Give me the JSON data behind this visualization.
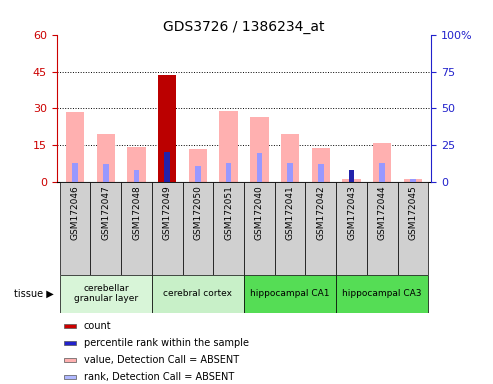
{
  "title": "GDS3726 / 1386234_at",
  "samples": [
    "GSM172046",
    "GSM172047",
    "GSM172048",
    "GSM172049",
    "GSM172050",
    "GSM172051",
    "GSM172040",
    "GSM172041",
    "GSM172042",
    "GSM172043",
    "GSM172044",
    "GSM172045"
  ],
  "pink_values": [
    28.5,
    19.5,
    14.5,
    43.5,
    13.5,
    29.0,
    26.5,
    19.5,
    14.0,
    1.5,
    16.0,
    1.2
  ],
  "blue_rank_values": [
    8.0,
    7.5,
    5.0,
    12.5,
    6.5,
    8.0,
    12.0,
    8.0,
    7.5,
    5.0,
    8.0,
    1.5
  ],
  "red_count_val": 43.5,
  "red_count_idx": 3,
  "dark_blue_count_val": 12.5,
  "dark_blue_count_idx": 3,
  "dark_blue2_count_val": 5.0,
  "dark_blue2_count_idx": 9,
  "ylim_left": [
    0,
    60
  ],
  "ylim_right": [
    0,
    100
  ],
  "yticks_left": [
    0,
    15,
    30,
    45,
    60
  ],
  "yticks_right": [
    0,
    25,
    50,
    75,
    100
  ],
  "ytick_labels_left": [
    "0",
    "15",
    "30",
    "45",
    "60"
  ],
  "ytick_labels_right": [
    "0",
    "25",
    "50",
    "75",
    "100%"
  ],
  "tissue_groups": [
    {
      "label": "cerebellar\ngranular layer",
      "start": 0,
      "end": 3,
      "color": "#d8f5d8"
    },
    {
      "label": "cerebral cortex",
      "start": 3,
      "end": 6,
      "color": "#c8f0c8"
    },
    {
      "label": "hippocampal CA1",
      "start": 6,
      "end": 9,
      "color": "#55dd55"
    },
    {
      "label": "hippocampal CA3",
      "start": 9,
      "end": 12,
      "color": "#55dd55"
    }
  ],
  "legend_items": [
    {
      "color": "#cc0000",
      "label": "count"
    },
    {
      "color": "#2222cc",
      "label": "percentile rank within the sample"
    },
    {
      "color": "#ffb0b0",
      "label": "value, Detection Call = ABSENT"
    },
    {
      "color": "#b0b8ff",
      "label": "rank, Detection Call = ABSENT"
    }
  ],
  "bar_width": 0.6,
  "pink_color": "#ffb0b0",
  "blue_bar_color": "#9898ff",
  "red_color": "#bb0000",
  "dark_blue_color": "#2222aa",
  "bg_color": "#ffffff",
  "tick_color_left": "#cc0000",
  "tick_color_right": "#2222cc",
  "sample_box_color": "#d0d0d0",
  "tissue_label": "tissue"
}
